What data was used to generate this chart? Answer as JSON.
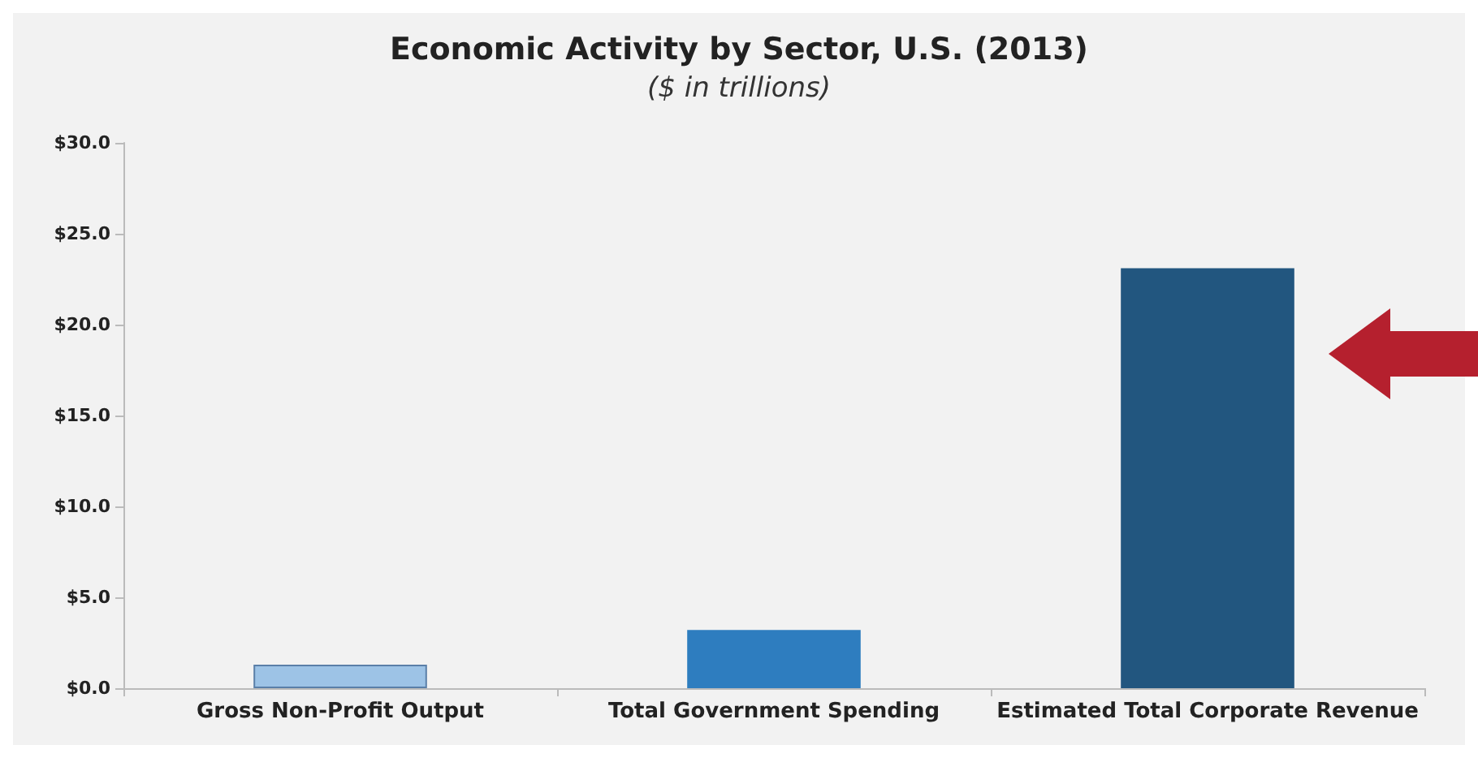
{
  "chart_data": {
    "type": "bar",
    "title": "Economic Activity by Sector, U.S. (2013)",
    "subtitle": "($ in trillions)",
    "categories": [
      "Gross Non-Profit Output",
      "Total Government Spending",
      "Estimated Total Corporate Revenue"
    ],
    "values": [
      1.3,
      3.2,
      23.1
    ],
    "colors": [
      "#9dc3e6",
      "#2e7dbf",
      "#22567f"
    ],
    "ylim": [
      0,
      30
    ],
    "yticks": [
      {
        "value": 0,
        "label": "$0.0"
      },
      {
        "value": 5,
        "label": "$5.0"
      },
      {
        "value": 10,
        "label": "$10.0"
      },
      {
        "value": 15,
        "label": "$15.0"
      },
      {
        "value": 20,
        "label": "$20.0"
      },
      {
        "value": 25,
        "label": "$25.0"
      },
      {
        "value": 30,
        "label": "$30.0"
      }
    ],
    "grid": false
  }
}
